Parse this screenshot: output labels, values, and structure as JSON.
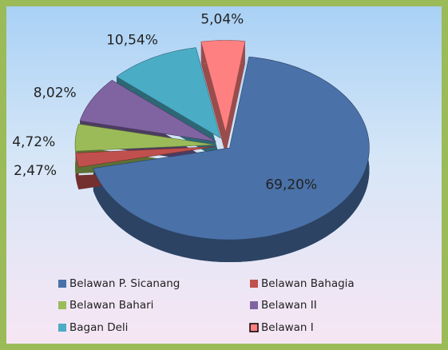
{
  "chart_data": {
    "type": "pie",
    "categories": [
      "Belawan P. Sicanang",
      "Belawan Bahagia",
      "Belawan Bahari",
      "Belawan II",
      "Bagan Deli",
      "Belawan I"
    ],
    "values": [
      69.2,
      2.47,
      4.72,
      8.02,
      10.54,
      5.04
    ],
    "value_labels": [
      "69,20%",
      "2,47%",
      "4,72%",
      "8,02%",
      "10,54%",
      "5,04%"
    ],
    "colors": [
      "#4a71a8",
      "#c0504d",
      "#9bbb59",
      "#8064a2",
      "#4bacc6",
      "#ff8080"
    ],
    "legend": "bottom"
  }
}
